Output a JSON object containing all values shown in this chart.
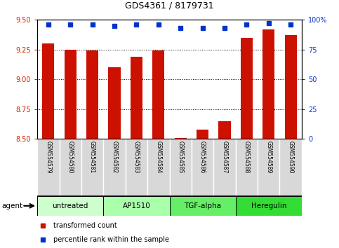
{
  "title": "GDS4361 / 8179731",
  "samples": [
    "GSM554579",
    "GSM554580",
    "GSM554581",
    "GSM554582",
    "GSM554583",
    "GSM554584",
    "GSM554585",
    "GSM554586",
    "GSM554587",
    "GSM554588",
    "GSM554589",
    "GSM554590"
  ],
  "red_values": [
    9.3,
    9.25,
    9.24,
    9.1,
    9.19,
    9.24,
    8.51,
    8.58,
    8.65,
    9.35,
    9.42,
    9.37
  ],
  "blue_values": [
    96,
    96,
    96,
    95,
    96,
    96,
    93,
    93,
    93,
    96,
    97,
    96
  ],
  "ylim_left": [
    8.5,
    9.5
  ],
  "ylim_right": [
    0,
    100
  ],
  "yticks_left": [
    8.5,
    8.75,
    9.0,
    9.25,
    9.5
  ],
  "yticks_right": [
    0,
    25,
    50,
    75,
    100
  ],
  "ytick_labels_right": [
    "0",
    "25",
    "50",
    "75",
    "100%"
  ],
  "bar_color": "#cc1100",
  "dot_color": "#0033cc",
  "groups": [
    {
      "label": "untreated",
      "start": 0,
      "end": 3,
      "color": "#ccffcc"
    },
    {
      "label": "AP1510",
      "start": 3,
      "end": 6,
      "color": "#aaffaa"
    },
    {
      "label": "TGF-alpha",
      "start": 6,
      "end": 9,
      "color": "#66ee66"
    },
    {
      "label": "Heregulin",
      "start": 9,
      "end": 12,
      "color": "#33dd33"
    }
  ],
  "legend_red_label": "transformed count",
  "legend_blue_label": "percentile rank within the sample",
  "bar_bottom": 8.5
}
